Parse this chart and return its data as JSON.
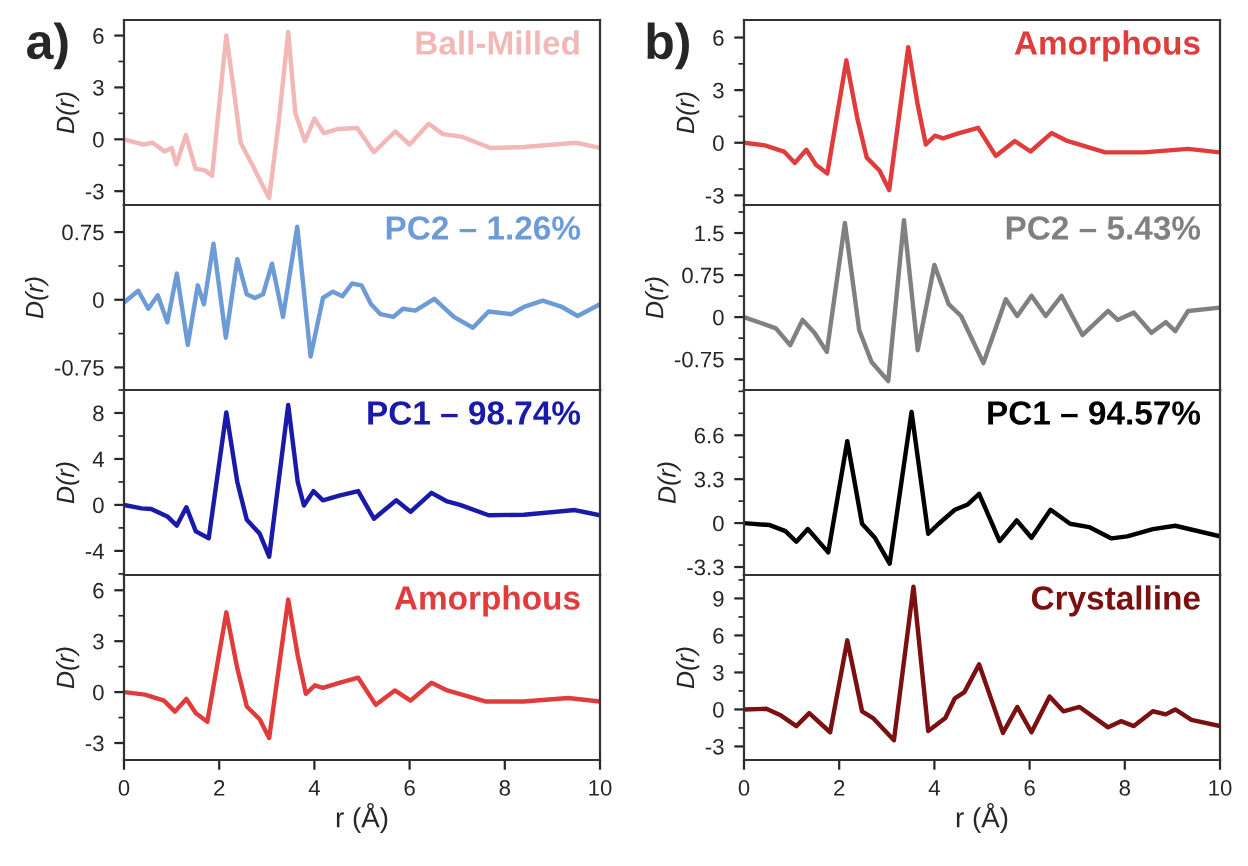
{
  "chart_data": [
    {
      "type": "line",
      "ylabel": "D(r)",
      "annotations": [
        "a)"
      ],
      "xlim": [
        0,
        10
      ],
      "ylim": [
        -3.8,
        6.9
      ],
      "yticks": [
        -3,
        0,
        3,
        6
      ],
      "tick_labels": "y",
      "series": [
        {
          "name": "Ball-Milled",
          "color": "#f2b8b8",
          "x": [
            0,
            0.4,
            0.6,
            0.85,
            1.0,
            1.1,
            1.3,
            1.5,
            1.7,
            1.85,
            2.0,
            2.15,
            2.3,
            2.45,
            2.7,
            2.9,
            3.05,
            3.25,
            3.45,
            3.6,
            3.8,
            4.0,
            4.2,
            4.5,
            4.9,
            5.25,
            5.7,
            6.0,
            6.4,
            6.7,
            7.1,
            7.7,
            8.4,
            9.5,
            10
          ],
          "values": [
            0,
            -0.3,
            -0.2,
            -0.7,
            -0.5,
            -1.45,
            0.25,
            -1.7,
            -1.8,
            -2.1,
            2.0,
            6.0,
            3.0,
            -0.2,
            -1.5,
            -2.6,
            -3.4,
            1.0,
            6.2,
            1.5,
            -0.1,
            1.2,
            0.35,
            0.6,
            0.65,
            -0.75,
            0.45,
            -0.3,
            0.9,
            0.3,
            0.15,
            -0.5,
            -0.45,
            -0.2,
            -0.5
          ]
        }
      ]
    },
    {
      "type": "line",
      "ylabel": "D(r)",
      "xlim": [
        0,
        10
      ],
      "ylim": [
        -1.0,
        1.05
      ],
      "yticks": [
        -0.75,
        0,
        0.75
      ],
      "tick_labels": "y",
      "series": [
        {
          "name": "PC2 – 1.26%",
          "color": "#6d9bd6",
          "x": [
            0,
            0.3,
            0.51,
            0.71,
            0.91,
            1.11,
            1.34,
            1.55,
            1.68,
            1.88,
            2.14,
            2.38,
            2.58,
            2.75,
            2.92,
            3.11,
            3.34,
            3.64,
            3.92,
            4.18,
            4.39,
            4.59,
            4.79,
            4.99,
            5.19,
            5.39,
            5.66,
            5.86,
            6.12,
            6.52,
            6.93,
            7.33,
            7.66,
            8.13,
            8.4,
            8.8,
            9.2,
            9.53,
            10
          ],
          "values": [
            -0.03,
            0.1,
            -0.1,
            0.05,
            -0.25,
            0.29,
            -0.5,
            0.16,
            -0.05,
            0.62,
            -0.42,
            0.45,
            0.06,
            0.02,
            0.06,
            0.4,
            -0.19,
            0.81,
            -0.63,
            0.02,
            0.09,
            0.04,
            0.18,
            0.16,
            -0.05,
            -0.16,
            -0.19,
            -0.1,
            -0.12,
            0.01,
            -0.19,
            -0.31,
            -0.13,
            -0.16,
            -0.08,
            -0.01,
            -0.08,
            -0.18,
            -0.05
          ]
        }
      ]
    },
    {
      "type": "line",
      "ylabel": "D(r)",
      "xlim": [
        0,
        10
      ],
      "ylim": [
        -6.1,
        10
      ],
      "yticks": [
        -4,
        0,
        4,
        8
      ],
      "tick_labels": "y",
      "series": [
        {
          "name": "PC1 – 98.74%",
          "color": "#1a1aa8",
          "x": [
            0,
            0.37,
            0.57,
            0.91,
            1.11,
            1.31,
            1.51,
            1.78,
            2.15,
            2.38,
            2.58,
            2.85,
            3.05,
            3.45,
            3.65,
            3.78,
            3.98,
            4.18,
            4.52,
            4.92,
            5.25,
            5.72,
            6.02,
            6.46,
            6.79,
            7.06,
            7.66,
            8.4,
            9.47,
            10
          ],
          "values": [
            0,
            -0.3,
            -0.35,
            -1.0,
            -1.8,
            -0.2,
            -2.3,
            -2.9,
            8.05,
            2.0,
            -1.3,
            -2.5,
            -4.5,
            8.7,
            2.0,
            -0.05,
            1.2,
            0.4,
            0.8,
            1.2,
            -1.2,
            0.4,
            -0.6,
            1.05,
            0.3,
            0,
            -0.9,
            -0.85,
            -0.45,
            -0.9
          ]
        }
      ]
    },
    {
      "type": "line",
      "ylabel": "D(r)",
      "xlabel": "r (Å)",
      "xlim": [
        0,
        10
      ],
      "xticks": [
        0,
        2,
        4,
        6,
        8,
        10
      ],
      "ylim": [
        -4.0,
        6.9
      ],
      "yticks": [
        -3,
        0,
        3,
        6
      ],
      "series": [
        {
          "name": "Amorphous",
          "color": "#e03c3c",
          "x": [
            0,
            0.44,
            0.84,
            1.07,
            1.31,
            1.51,
            1.75,
            2.15,
            2.38,
            2.58,
            2.85,
            3.05,
            3.45,
            3.65,
            3.82,
            4.01,
            4.18,
            4.52,
            4.92,
            5.29,
            5.69,
            6.02,
            6.46,
            6.79,
            7.59,
            8.4,
            9.33,
            10
          ],
          "values": [
            0,
            -0.15,
            -0.5,
            -1.15,
            -0.4,
            -1.25,
            -1.75,
            4.7,
            1.4,
            -0.85,
            -1.6,
            -2.7,
            5.45,
            2.15,
            -0.1,
            0.4,
            0.25,
            0.55,
            0.85,
            -0.75,
            0.1,
            -0.5,
            0.55,
            0.1,
            -0.55,
            -0.55,
            -0.35,
            -0.55
          ]
        }
      ]
    },
    {
      "type": "line",
      "ylabel": "D(r)",
      "annotations": [
        "b)"
      ],
      "xlim": [
        0,
        10
      ],
      "ylim": [
        -3.55,
        7.0
      ],
      "yticks": [
        -3,
        0,
        3,
        6
      ],
      "tick_labels": "y",
      "series": [
        {
          "name": "Amorphous",
          "color": "#e03c3c",
          "x": [
            0,
            0.44,
            0.84,
            1.07,
            1.31,
            1.51,
            1.75,
            2.15,
            2.38,
            2.58,
            2.85,
            3.05,
            3.45,
            3.65,
            3.82,
            4.01,
            4.18,
            4.52,
            4.92,
            5.29,
            5.69,
            6.02,
            6.46,
            6.79,
            7.59,
            8.4,
            9.33,
            10
          ],
          "values": [
            0,
            -0.15,
            -0.5,
            -1.15,
            -0.4,
            -1.25,
            -1.75,
            4.7,
            1.4,
            -0.85,
            -1.6,
            -2.7,
            5.45,
            2.15,
            -0.1,
            0.4,
            0.25,
            0.55,
            0.85,
            -0.75,
            0.1,
            -0.5,
            0.55,
            0.1,
            -0.55,
            -0.55,
            -0.35,
            -0.55
          ]
        }
      ]
    },
    {
      "type": "line",
      "ylabel": "D(r)",
      "xlim": [
        0,
        10
      ],
      "ylim": [
        -1.3,
        2.0
      ],
      "yticks": [
        -0.75,
        0,
        0.75,
        1.5
      ],
      "tick_labels": "y",
      "series": [
        {
          "name": "PC2 – 5.43%",
          "color": "#808080",
          "x": [
            0,
            0.34,
            0.67,
            0.97,
            1.23,
            1.48,
            1.74,
            2.12,
            2.42,
            2.68,
            3.03,
            3.36,
            3.65,
            4.0,
            4.3,
            4.56,
            5.03,
            5.5,
            5.74,
            6.04,
            6.34,
            6.67,
            7.11,
            7.65,
            7.85,
            8.19,
            8.56,
            8.86,
            9.06,
            9.33,
            10
          ],
          "values": [
            0,
            -0.1,
            -0.2,
            -0.5,
            -0.05,
            -0.28,
            -0.62,
            1.68,
            -0.23,
            -0.8,
            -1.14,
            1.73,
            -0.59,
            0.93,
            0.23,
            0.02,
            -0.82,
            0.32,
            0.02,
            0.38,
            0.02,
            0.38,
            -0.32,
            0.11,
            -0.05,
            0.08,
            -0.28,
            -0.09,
            -0.25,
            0.11,
            0.17
          ]
        }
      ]
    },
    {
      "type": "line",
      "ylabel": "D(r)",
      "xlim": [
        0,
        10
      ],
      "ylim": [
        -3.9,
        10
      ],
      "yticks": [
        -3.3,
        0,
        3.3,
        6.6
      ],
      "tick_labels": "y",
      "series": [
        {
          "name": "PC1 – 94.57%",
          "color": "#000000",
          "x": [
            0,
            0.54,
            0.87,
            1.1,
            1.34,
            1.77,
            2.17,
            2.48,
            2.75,
            3.06,
            3.52,
            3.87,
            4.09,
            4.43,
            4.7,
            4.94,
            5.37,
            5.73,
            6.04,
            6.44,
            6.85,
            7.25,
            7.72,
            8.05,
            8.59,
            9.06,
            10
          ],
          "values": [
            0,
            -0.15,
            -0.6,
            -1.4,
            -0.45,
            -2.2,
            6.15,
            -0.05,
            -1.1,
            -3.05,
            8.35,
            -0.8,
            -0.05,
            1.0,
            1.4,
            2.2,
            -1.35,
            0.2,
            -1.1,
            1.0,
            -0.05,
            -0.3,
            -1.15,
            -1.0,
            -0.45,
            -0.2,
            -1.0
          ]
        }
      ]
    },
    {
      "type": "line",
      "ylabel": "D(r)",
      "xlabel": "r (Å)",
      "xlim": [
        0,
        10
      ],
      "xticks": [
        0,
        2,
        4,
        6,
        8,
        10
      ],
      "ylim": [
        -4.1,
        10.9
      ],
      "yticks": [
        -3,
        0,
        3,
        6,
        9
      ],
      "series": [
        {
          "name": "Crystalline",
          "color": "#7a1010",
          "x": [
            0,
            0.47,
            0.78,
            1.1,
            1.37,
            1.81,
            2.17,
            2.48,
            2.71,
            3.15,
            3.56,
            3.87,
            4.23,
            4.43,
            4.63,
            4.94,
            5.44,
            5.74,
            6.04,
            6.42,
            6.71,
            7.05,
            7.65,
            7.92,
            8.19,
            8.59,
            8.86,
            9.06,
            9.4,
            10
          ],
          "values": [
            0,
            0.05,
            -0.5,
            -1.35,
            -0.3,
            -1.85,
            5.6,
            -0.15,
            -0.7,
            -2.5,
            9.95,
            -1.75,
            -0.7,
            0.9,
            1.4,
            3.65,
            -1.9,
            0.2,
            -1.85,
            1.05,
            -0.15,
            0.2,
            -1.45,
            -0.95,
            -1.35,
            -0.15,
            -0.4,
            0,
            -0.85,
            -1.35
          ]
        }
      ]
    }
  ]
}
